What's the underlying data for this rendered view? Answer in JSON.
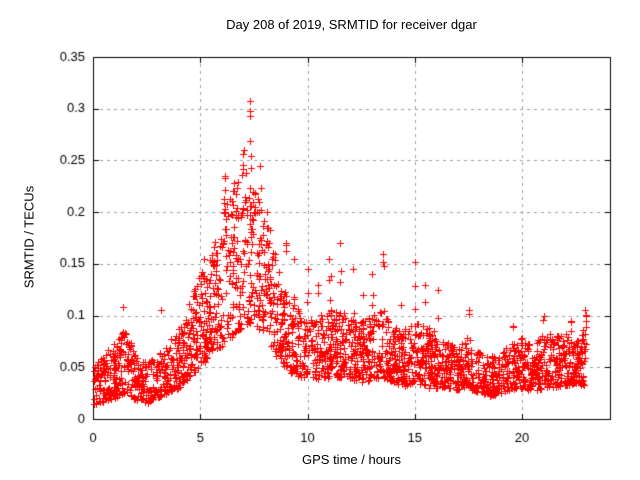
{
  "chart_data": {
    "type": "scatter",
    "title": "Day 208 of 2019, SRMTID for receiver dgar",
    "xlabel": "GPS time / hours",
    "ylabel": "SRMTID / TECUs",
    "xlim": [
      0,
      24.1
    ],
    "ylim": [
      0,
      0.35
    ],
    "xticks": [
      0,
      5,
      10,
      15,
      20
    ],
    "xtick_labels": [
      "0",
      "5",
      "10",
      "15",
      "20"
    ],
    "yticks": [
      0,
      0.05,
      0.1,
      0.15,
      0.2,
      0.25,
      0.3,
      0.35
    ],
    "ytick_labels": [
      "0",
      "0.05",
      "0.1",
      "0.15",
      "0.2",
      "0.25",
      "0.3",
      "0.35"
    ],
    "grid": true,
    "legend": false,
    "marker": "plus",
    "marker_color": "#ff0000",
    "grid_color": "#a0a0a0",
    "axis_color": "#000000",
    "text_color": "#000000",
    "background": "#ffffff",
    "observed_max": {
      "hour": 7.35,
      "value": 0.307
    },
    "data_t_max": 22.92,
    "n_points": 2450,
    "shape": 1.35,
    "seed": 42,
    "envelope": [
      [
        0,
        0.013,
        0.055
      ],
      [
        0.5,
        0.015,
        0.06
      ],
      [
        1,
        0.02,
        0.08
      ],
      [
        1.5,
        0.025,
        0.09
      ],
      [
        2,
        0.018,
        0.06
      ],
      [
        2.5,
        0.015,
        0.055
      ],
      [
        3,
        0.02,
        0.06
      ],
      [
        3.5,
        0.025,
        0.075
      ],
      [
        4,
        0.03,
        0.09
      ],
      [
        4.5,
        0.04,
        0.115
      ],
      [
        5,
        0.05,
        0.14
      ],
      [
        5.5,
        0.06,
        0.16
      ],
      [
        6,
        0.07,
        0.2
      ],
      [
        6.5,
        0.08,
        0.225
      ],
      [
        7,
        0.09,
        0.245
      ],
      [
        7.5,
        0.09,
        0.23
      ],
      [
        8,
        0.08,
        0.2
      ],
      [
        8.4,
        0.065,
        0.175
      ],
      [
        8.8,
        0.05,
        0.13
      ],
      [
        9.2,
        0.045,
        0.115
      ],
      [
        9.6,
        0.04,
        0.105
      ],
      [
        10,
        0.04,
        0.1
      ],
      [
        10.5,
        0.038,
        0.1
      ],
      [
        11,
        0.04,
        0.105
      ],
      [
        11.5,
        0.04,
        0.11
      ],
      [
        12,
        0.038,
        0.1
      ],
      [
        12.5,
        0.035,
        0.095
      ],
      [
        13,
        0.038,
        0.1
      ],
      [
        13.5,
        0.04,
        0.105
      ],
      [
        14,
        0.035,
        0.09
      ],
      [
        14.5,
        0.032,
        0.085
      ],
      [
        15,
        0.035,
        0.1
      ],
      [
        15.5,
        0.03,
        0.09
      ],
      [
        16,
        0.03,
        0.085
      ],
      [
        16.5,
        0.03,
        0.075
      ],
      [
        17,
        0.028,
        0.07
      ],
      [
        17.5,
        0.03,
        0.08
      ],
      [
        18,
        0.025,
        0.065
      ],
      [
        18.5,
        0.022,
        0.06
      ],
      [
        19,
        0.025,
        0.065
      ],
      [
        19.5,
        0.028,
        0.075
      ],
      [
        20,
        0.03,
        0.08
      ],
      [
        20.5,
        0.026,
        0.07
      ],
      [
        21,
        0.03,
        0.085
      ],
      [
        21.5,
        0.03,
        0.08
      ],
      [
        22,
        0.032,
        0.085
      ],
      [
        22.5,
        0.035,
        0.075
      ],
      [
        23,
        0.03,
        0.09
      ]
    ],
    "spikes": [
      [
        1.4,
        0.108,
        2
      ],
      [
        3.2,
        0.105,
        1
      ],
      [
        5.2,
        0.155,
        3
      ],
      [
        6.15,
        0.235,
        8
      ],
      [
        6.55,
        0.22,
        5
      ],
      [
        7.0,
        0.26,
        5
      ],
      [
        7.35,
        0.307,
        9
      ],
      [
        7.8,
        0.245,
        4
      ],
      [
        8.1,
        0.2,
        5
      ],
      [
        9.0,
        0.17,
        4
      ],
      [
        9.4,
        0.155,
        3
      ],
      [
        10.0,
        0.145,
        3
      ],
      [
        10.5,
        0.13,
        3
      ],
      [
        11.05,
        0.155,
        4
      ],
      [
        11.55,
        0.17,
        4
      ],
      [
        12.15,
        0.145,
        3
      ],
      [
        12.6,
        0.12,
        3
      ],
      [
        13.0,
        0.14,
        3
      ],
      [
        13.55,
        0.16,
        4
      ],
      [
        14.4,
        0.11,
        2
      ],
      [
        15.0,
        0.152,
        4
      ],
      [
        15.5,
        0.13,
        3
      ],
      [
        16.1,
        0.125,
        3
      ],
      [
        17.5,
        0.105,
        3
      ],
      [
        19.6,
        0.09,
        3
      ],
      [
        21.0,
        0.1,
        3
      ],
      [
        22.3,
        0.095,
        3
      ],
      [
        22.95,
        0.105,
        8
      ]
    ]
  }
}
